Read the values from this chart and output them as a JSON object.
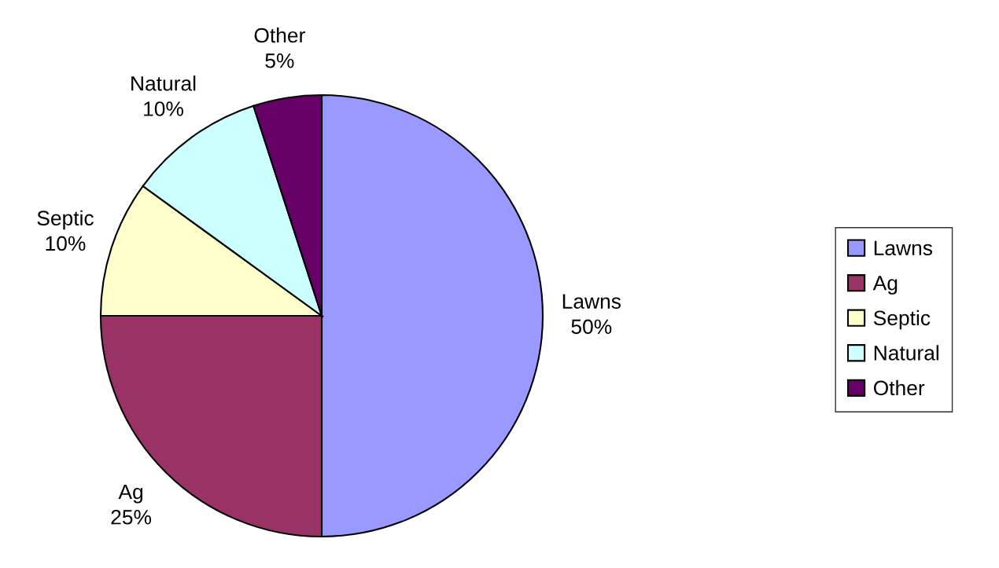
{
  "chart_data": {
    "type": "pie",
    "categories": [
      "Lawns",
      "Ag",
      "Septic",
      "Natural",
      "Other"
    ],
    "values": [
      50,
      25,
      10,
      10,
      5
    ],
    "value_labels": [
      "50%",
      "25%",
      "10%",
      "10%",
      "5%"
    ],
    "colors": [
      "#9999ff",
      "#993366",
      "#ffffcc",
      "#ccffff",
      "#660066"
    ],
    "legend": "right"
  }
}
